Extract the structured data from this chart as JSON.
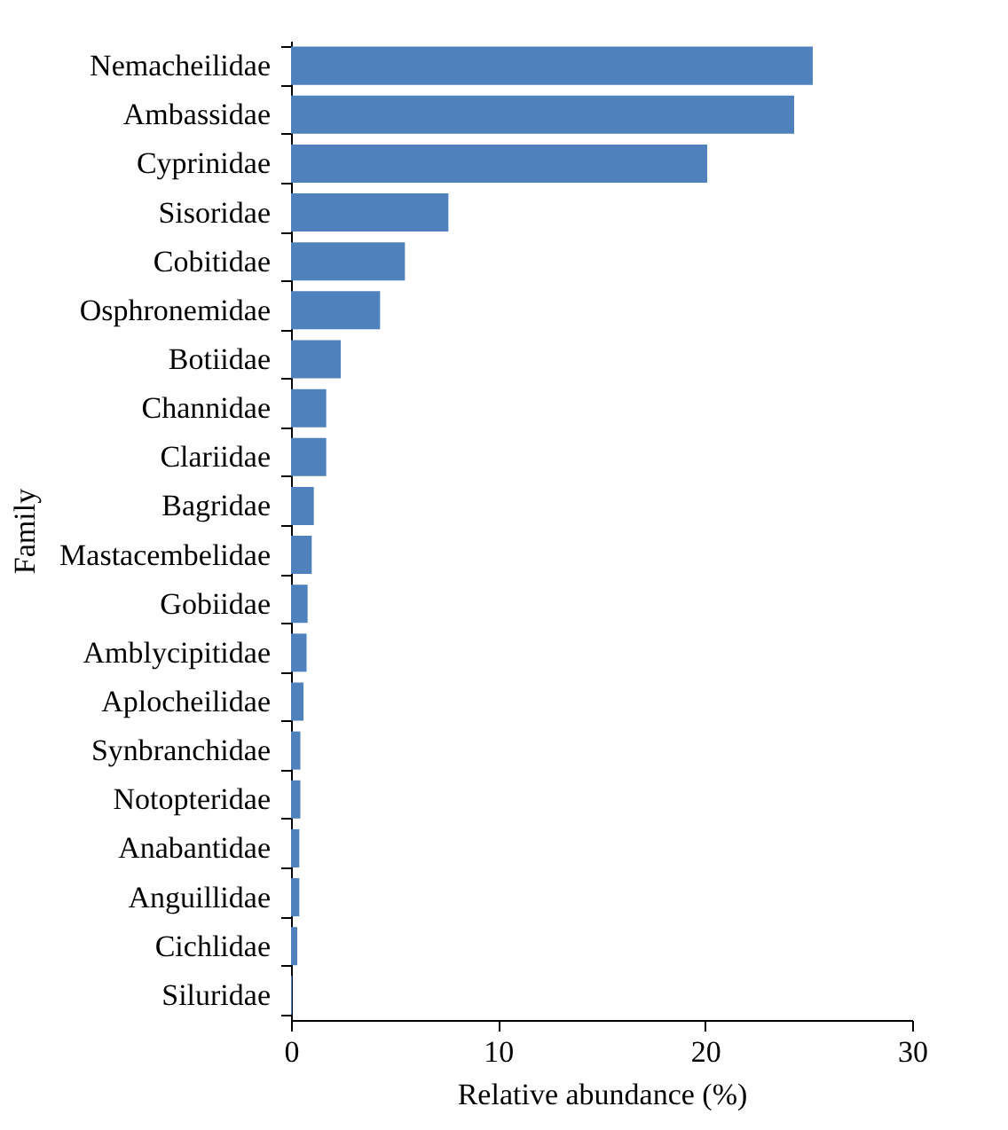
{
  "chart_data": {
    "type": "bar",
    "orientation": "horizontal",
    "xlabel": "Relative abundance (%)",
    "ylabel": "Family",
    "categories": [
      "Nemacheilidae",
      "Ambassidae",
      "Cyprinidae",
      "Sisoridae",
      "Cobitidae",
      "Osphronemidae",
      "Botiidae",
      "Channidae",
      "Clariidae",
      "Bagridae",
      "Mastacembelidae",
      "Gobiidae",
      "Amblycipitidae",
      "Aplocheilidae",
      "Synbranchidae",
      "Notopteridae",
      "Anabantidae",
      "Anguillidae",
      "Cichlidae",
      "Siluridae"
    ],
    "values": [
      25.2,
      24.3,
      20.1,
      7.6,
      5.5,
      4.3,
      2.4,
      1.7,
      1.7,
      1.1,
      1.0,
      0.8,
      0.75,
      0.6,
      0.45,
      0.45,
      0.4,
      0.4,
      0.3,
      0.05
    ],
    "color": "#4f81bd",
    "xlim": [
      0,
      30
    ],
    "xticks": [
      0,
      10,
      20,
      30
    ],
    "grid": false
  }
}
